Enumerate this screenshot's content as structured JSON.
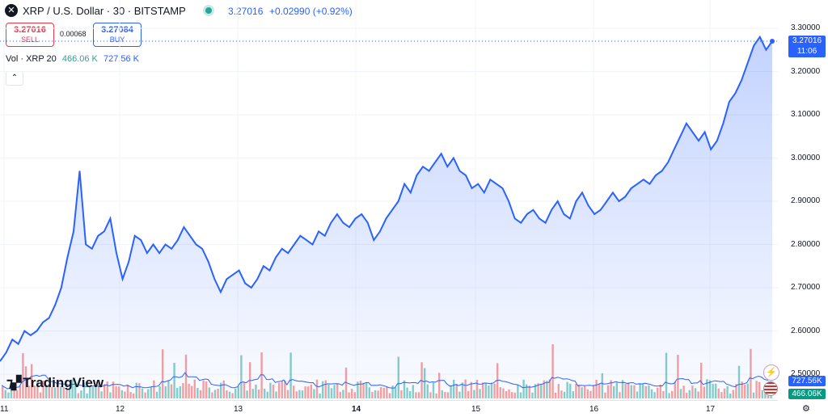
{
  "header": {
    "title": "XRP / U.S. Dollar · 30 · BITSTAMP",
    "price": "3.27016",
    "change": "+0.02990 (+0.92%)"
  },
  "trade": {
    "sell_price": "3.27016",
    "sell_label": "SELL",
    "spread": "0.00068",
    "buy_price": "3.27084",
    "buy_label": "BUY"
  },
  "volume_legend": {
    "label": "Vol · XRP 20",
    "volume": "466.06 K",
    "ma": "727.56 K"
  },
  "price_axis": [
    "3.30000",
    "3.20000",
    "3.10000",
    "3.00000",
    "2.90000",
    "2.80000",
    "2.70000",
    "2.60000",
    "2.50000"
  ],
  "last_price_tag": {
    "price": "3.27016",
    "countdown": "11:06"
  },
  "volume_tags": {
    "ma": "727.56K",
    "volume": "466.06K"
  },
  "time_axis": [
    {
      "label": "11",
      "bold": false
    },
    {
      "label": "12",
      "bold": false
    },
    {
      "label": "13",
      "bold": false
    },
    {
      "label": "14",
      "bold": true
    },
    {
      "label": "15",
      "bold": false
    },
    {
      "label": "16",
      "bold": false
    },
    {
      "label": "17",
      "bold": false
    }
  ],
  "logo": "TradingView",
  "colors": {
    "line": "#2962ff",
    "up": "#26a69a",
    "down": "#ef5350"
  },
  "chart_data": {
    "type": "area",
    "ylim": [
      2.5,
      3.3
    ],
    "price": [
      2.53,
      2.55,
      2.58,
      2.57,
      2.6,
      2.59,
      2.6,
      2.62,
      2.63,
      2.66,
      2.7,
      2.77,
      2.83,
      2.97,
      2.8,
      2.79,
      2.82,
      2.83,
      2.86,
      2.78,
      2.72,
      2.76,
      2.82,
      2.81,
      2.78,
      2.8,
      2.78,
      2.8,
      2.79,
      2.81,
      2.84,
      2.82,
      2.8,
      2.79,
      2.76,
      2.72,
      2.69,
      2.72,
      2.73,
      2.74,
      2.71,
      2.7,
      2.72,
      2.75,
      2.74,
      2.77,
      2.79,
      2.78,
      2.8,
      2.82,
      2.81,
      2.8,
      2.83,
      2.82,
      2.85,
      2.87,
      2.85,
      2.84,
      2.86,
      2.87,
      2.85,
      2.81,
      2.83,
      2.86,
      2.88,
      2.9,
      2.94,
      2.92,
      2.96,
      2.98,
      2.97,
      2.99,
      3.01,
      2.98,
      3.0,
      2.97,
      2.96,
      2.93,
      2.94,
      2.92,
      2.95,
      2.94,
      2.93,
      2.9,
      2.86,
      2.85,
      2.87,
      2.88,
      2.86,
      2.85,
      2.88,
      2.9,
      2.87,
      2.86,
      2.9,
      2.92,
      2.89,
      2.87,
      2.88,
      2.9,
      2.92,
      2.9,
      2.91,
      2.93,
      2.94,
      2.95,
      2.94,
      2.96,
      2.97,
      2.99,
      3.02,
      3.05,
      3.08,
      3.06,
      3.04,
      3.06,
      3.02,
      3.04,
      3.08,
      3.13,
      3.15,
      3.18,
      3.22,
      3.26,
      3.28,
      3.25,
      3.27
    ]
  }
}
